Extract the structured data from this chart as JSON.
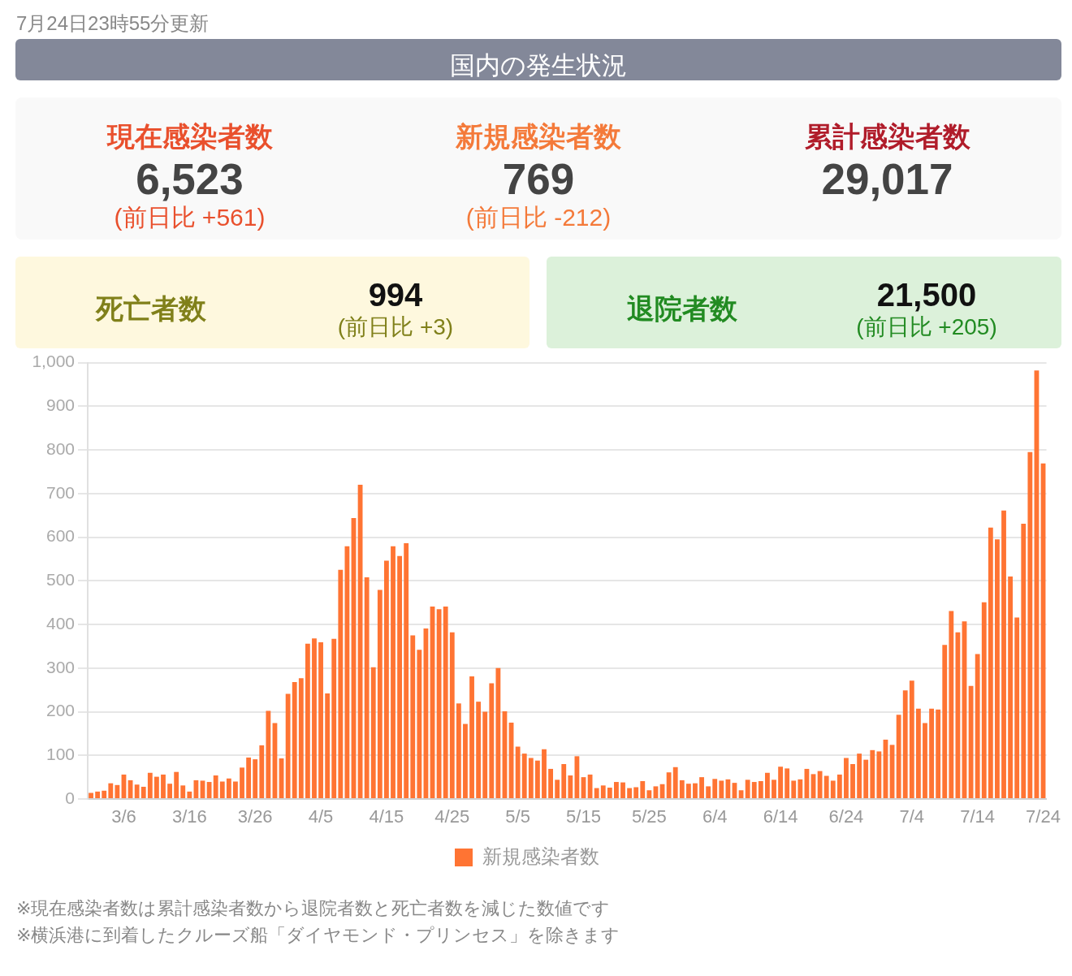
{
  "chart_data": [
    {
      "type": "other",
      "title": "国内の発生状況",
      "subtitle": "7月24日23時55分更新"
    },
    {
      "type": "other",
      "title": "現在感染者数",
      "annotations": [
        "6,523",
        "(前日比 +561)"
      ]
    },
    {
      "type": "other",
      "title": "新規感染者数",
      "annotations": [
        "769",
        "(前日比 -212)"
      ]
    },
    {
      "type": "other",
      "title": "累計感染者数",
      "annotations": [
        "29,017"
      ]
    },
    {
      "type": "other",
      "title": "死亡者数",
      "annotations": [
        "994",
        "(前日比 +3)"
      ]
    },
    {
      "type": "other",
      "title": "退院者数",
      "annotations": [
        "21,500",
        "(前日比 +205)"
      ]
    },
    {
      "type": "bar",
      "categories": [
        null,
        null,
        null,
        null,
        null,
        "3/6",
        null,
        null,
        null,
        null,
        null,
        null,
        null,
        null,
        null,
        "3/16",
        null,
        null,
        null,
        null,
        null,
        null,
        null,
        null,
        null,
        "3/26",
        null,
        null,
        null,
        null,
        null,
        null,
        null,
        null,
        null,
        "4/5",
        null,
        null,
        null,
        null,
        null,
        null,
        null,
        null,
        null,
        "4/15",
        null,
        null,
        null,
        null,
        null,
        null,
        null,
        null,
        null,
        "4/25",
        null,
        null,
        null,
        null,
        null,
        null,
        null,
        null,
        null,
        "5/5",
        null,
        null,
        null,
        null,
        null,
        null,
        null,
        null,
        null,
        "5/15",
        null,
        null,
        null,
        null,
        null,
        null,
        null,
        null,
        null,
        "5/25",
        null,
        null,
        null,
        null,
        null,
        null,
        null,
        null,
        null,
        "6/4",
        null,
        null,
        null,
        null,
        null,
        null,
        null,
        null,
        null,
        "6/14",
        null,
        null,
        null,
        null,
        null,
        null,
        null,
        null,
        null,
        "6/24",
        null,
        null,
        null,
        null,
        null,
        null,
        null,
        null,
        null,
        "7/4",
        null,
        null,
        null,
        null,
        null,
        null,
        null,
        null,
        null,
        "7/14",
        null,
        null,
        null,
        null,
        null,
        null,
        null,
        null,
        null,
        "7/24"
      ],
      "series": [
        {
          "name": "新規感染者数",
          "color": "#ff7433",
          "values": [
            14,
            17,
            19,
            36,
            32,
            56,
            43,
            33,
            28,
            60,
            51,
            56,
            35,
            62,
            31,
            17,
            43,
            42,
            39,
            54,
            40,
            47,
            40,
            72,
            95,
            91,
            123,
            202,
            174,
            93,
            241,
            268,
            277,
            356,
            368,
            359,
            242,
            367,
            525,
            579,
            644,
            720,
            508,
            302,
            479,
            546,
            579,
            557,
            586,
            375,
            342,
            391,
            441,
            435,
            441,
            382,
            219,
            172,
            281,
            223,
            200,
            265,
            300,
            201,
            175,
            120,
            104,
            94,
            88,
            114,
            69,
            44,
            80,
            54,
            98,
            50,
            56,
            25,
            31,
            26,
            39,
            38,
            25,
            27,
            41,
            20,
            29,
            34,
            61,
            73,
            43,
            35,
            36,
            50,
            29,
            46,
            42,
            45,
            37,
            20,
            44,
            39,
            41,
            60,
            44,
            74,
            70,
            42,
            45,
            69,
            57,
            64,
            53,
            42,
            56,
            94,
            80,
            104,
            90,
            112,
            109,
            136,
            124,
            193,
            249,
            271,
            207,
            174,
            207,
            205,
            353,
            431,
            382,
            407,
            259,
            332,
            451,
            622,
            595,
            661,
            510,
            416,
            631,
            795,
            982,
            769
          ]
        }
      ],
      "ylim": [
        0,
        1000
      ],
      "yticks": [
        0,
        100,
        200,
        300,
        400,
        500,
        600,
        700,
        800,
        900,
        {
          "value": 1000,
          "label": "1,000"
        }
      ],
      "grid": "y",
      "legend": "bottom",
      "annotations": [
        "※現在感染者数は累計感染者数から退院者数と死亡者数を減じた数値です",
        "※横浜港に到着したクルーズ船「ダイヤモンド・プリンセス」を除きます"
      ]
    }
  ]
}
